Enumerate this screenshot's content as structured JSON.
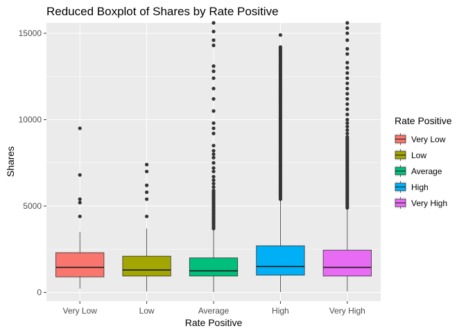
{
  "chart_data": {
    "type": "boxplot",
    "title": "Reduced Boxplot of Shares by Rate Positive",
    "xlabel": "Rate Positive",
    "ylabel": "Shares",
    "ylim": [
      -500,
      15600
    ],
    "yticks": [
      0,
      5000,
      10000,
      15000
    ],
    "ytick_labels": [
      "0",
      "5000",
      "10000",
      "15000"
    ],
    "grid": true,
    "legend_title": "Rate Positive",
    "legend_position": "right",
    "categories": [
      "Very Low",
      "Low",
      "Average",
      "High",
      "Very High"
    ],
    "colors": [
      "#F8766D",
      "#A3A500",
      "#00BF7D",
      "#00B0F6",
      "#E76BF3"
    ],
    "boxes": [
      {
        "category": "Very Low",
        "min": 220,
        "q1": 900,
        "median": 1450,
        "q3": 2300,
        "max": 3500,
        "outliers": [
          4400,
          5200,
          5400,
          6800,
          9500
        ]
      },
      {
        "category": "Low",
        "min": 60,
        "q1": 950,
        "median": 1300,
        "q3": 2100,
        "max": 3700,
        "outliers": [
          4400,
          5400,
          5800,
          6200,
          7000,
          7400
        ]
      },
      {
        "category": "Average",
        "min": 20,
        "q1": 950,
        "median": 1250,
        "q3": 2000,
        "max": 3600,
        "outliers": [
          3700,
          3800,
          3900,
          4000,
          4100,
          4200,
          4300,
          4400,
          4500,
          4600,
          4700,
          4800,
          4900,
          5000,
          5100,
          5200,
          5300,
          5400,
          5500,
          5600,
          5700,
          5800,
          5900,
          6100,
          6300,
          6500,
          6700,
          7000,
          7200,
          7500,
          7800,
          8000,
          8200,
          8500,
          9200,
          9500,
          9800,
          10500,
          11200,
          11800,
          12400,
          12800,
          13100,
          14300,
          14600,
          15100,
          15600
        ]
      },
      {
        "category": "High",
        "min": 20,
        "q1": 1000,
        "median": 1500,
        "q3": 2700,
        "max": 5300,
        "outliers": [
          5400,
          5500,
          5600,
          5700,
          5800,
          5900,
          6000,
          6100,
          6200,
          6300,
          6400,
          6500,
          6600,
          6700,
          6800,
          6900,
          7000,
          7100,
          7200,
          7300,
          7400,
          7500,
          7600,
          7700,
          7800,
          7900,
          8000,
          8100,
          8200,
          8300,
          8400,
          8500,
          8600,
          8700,
          8800,
          8900,
          9000,
          9100,
          9200,
          9300,
          9400,
          9500,
          9600,
          9700,
          9800,
          9900,
          10000,
          10100,
          10200,
          10300,
          10400,
          10500,
          10600,
          10700,
          10800,
          10900,
          11000,
          11100,
          11200,
          11300,
          11400,
          11500,
          11600,
          11700,
          11800,
          11900,
          12000,
          12100,
          12200,
          12300,
          12400,
          12500,
          12600,
          12700,
          12800,
          12900,
          13000,
          13100,
          13200,
          13300,
          13400,
          13500,
          13600,
          13700,
          13800,
          13900,
          14000,
          14100,
          14200,
          14900
        ]
      },
      {
        "category": "Very High",
        "min": 60,
        "q1": 950,
        "median": 1450,
        "q3": 2450,
        "max": 4800,
        "outliers": [
          4900,
          5000,
          5100,
          5200,
          5300,
          5400,
          5500,
          5600,
          5700,
          5800,
          5900,
          6000,
          6100,
          6200,
          6300,
          6400,
          6500,
          6600,
          6700,
          6800,
          6900,
          7000,
          7100,
          7200,
          7300,
          7400,
          7500,
          7600,
          7700,
          7800,
          7900,
          8000,
          8100,
          8200,
          8300,
          8400,
          8500,
          8600,
          8700,
          8800,
          8900,
          9000,
          9200,
          9400,
          9600,
          9800,
          10000,
          10300,
          10600,
          10900,
          11200,
          11500,
          11800,
          12100,
          12400,
          12700,
          13000,
          13300,
          13800,
          14100,
          14600,
          15000,
          15300,
          15600
        ]
      }
    ]
  }
}
